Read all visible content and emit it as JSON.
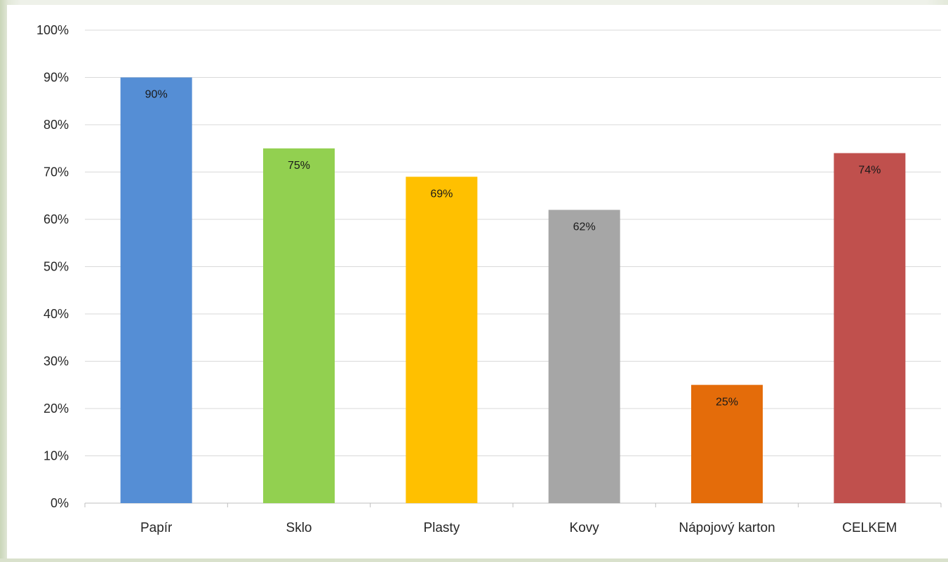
{
  "chart_data": {
    "type": "bar",
    "title": "",
    "xlabel": "",
    "ylabel": "",
    "categories": [
      "Papír",
      "Sklo",
      "Plasty",
      "Kovy",
      "Nápojový karton",
      "CELKEM"
    ],
    "values": [
      90,
      75,
      69,
      62,
      25,
      74
    ],
    "data_labels": [
      "90%",
      "75%",
      "69%",
      "62%",
      "25%",
      "74%"
    ],
    "colors": [
      "#558ED5",
      "#92D050",
      "#FFC000",
      "#A6A6A6",
      "#E46C0A",
      "#C0504D"
    ],
    "ylim": [
      0,
      100
    ],
    "yticks": [
      0,
      10,
      20,
      30,
      40,
      50,
      60,
      70,
      80,
      90,
      100
    ],
    "ytick_labels": [
      "0%",
      "10%",
      "20%",
      "30%",
      "40%",
      "50%",
      "60%",
      "70%",
      "80%",
      "90%",
      "100%"
    ],
    "grid": true,
    "legend": "none"
  }
}
